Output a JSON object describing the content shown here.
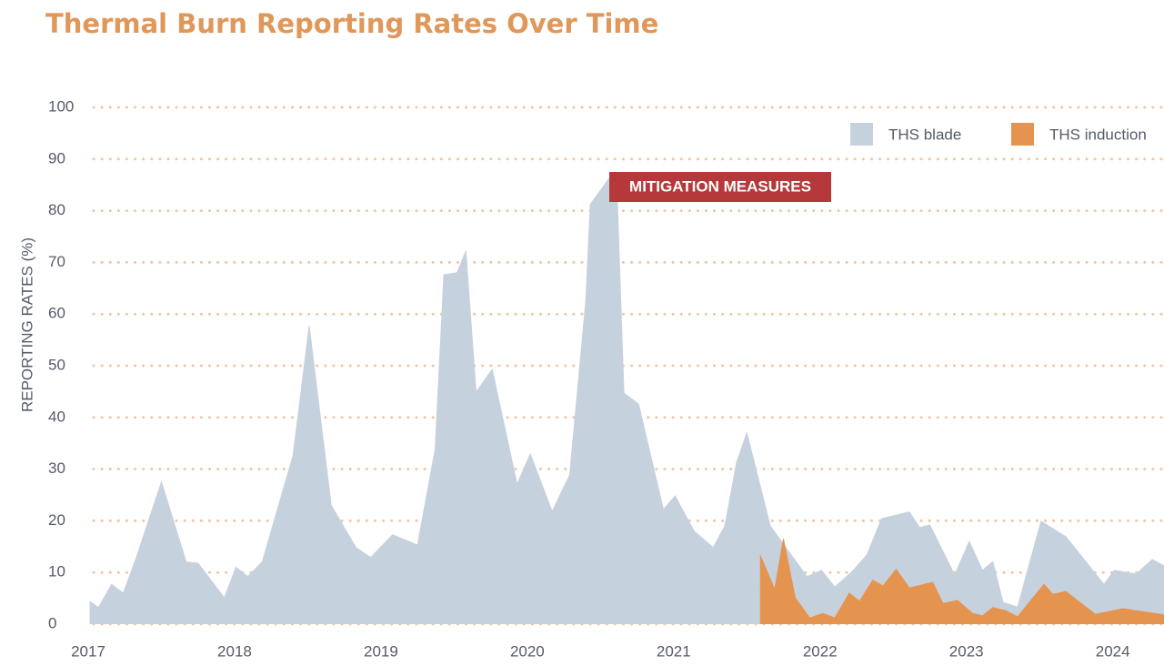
{
  "chart_data": {
    "type": "area",
    "title": "Thermal Burn Reporting Rates Over Time",
    "y_label": "REPORTING RATES (%)",
    "annotation": "MITIGATION MEASURES",
    "xlim": [
      2017,
      2024.35
    ],
    "xticks": [
      2017,
      2018,
      2019,
      2020,
      2021,
      2022,
      2023,
      2024
    ],
    "ylim": [
      0,
      100
    ],
    "yticks": [
      0,
      10,
      20,
      30,
      40,
      50,
      60,
      70,
      80,
      90,
      100
    ],
    "grid": true,
    "legend": "top-right",
    "series": [
      {
        "name": "THS blade",
        "color": "#c6d1de",
        "x": [
          2017.01,
          2017.07,
          2017.16,
          2017.24,
          2017.33,
          2017.5,
          2017.67,
          2017.75,
          2017.93,
          2018.01,
          2018.09,
          2018.19,
          2018.4,
          2018.51,
          2018.66,
          2018.83,
          2018.93,
          2019.08,
          2019.25,
          2019.37,
          2019.43,
          2019.52,
          2019.58,
          2019.65,
          2019.76,
          2019.93,
          2020.02,
          2020.17,
          2020.29,
          2020.4,
          2020.43,
          2020.56,
          2020.61,
          2020.66,
          2020.76,
          2020.93,
          2021.01,
          2021.14,
          2021.27,
          2021.35,
          2021.43,
          2021.5,
          2021.66,
          2021.91,
          2022.01,
          2022.1,
          2022.21,
          2022.32,
          2022.42,
          2022.61,
          2022.68,
          2022.75,
          2022.92,
          2023.02,
          2023.11,
          2023.18,
          2023.25,
          2023.35,
          2023.51,
          2023.68,
          2023.94,
          2024.01,
          2024.16,
          2024.27,
          2024.35
        ],
        "values": [
          4.4,
          3.2,
          7.7,
          6,
          13,
          27.5,
          12,
          11.8,
          5.1,
          11,
          9.2,
          12.1,
          32.7,
          57.7,
          23,
          14.8,
          12.9,
          17.3,
          15.3,
          33.8,
          67.6,
          68,
          72.2,
          44.9,
          49.3,
          27.1,
          32.9,
          21.8,
          28.9,
          62.7,
          81.2,
          86.3,
          86.3,
          44.7,
          42.6,
          22.2,
          24.8,
          18,
          14.8,
          19,
          31.3,
          37,
          19,
          9.2,
          10.4,
          7.2,
          9.9,
          13.4,
          20.4,
          21.7,
          18.7,
          19.2,
          9.5,
          16,
          10.4,
          12.1,
          4.2,
          3.3,
          19.9,
          16.9,
          7.7,
          10.4,
          9.7,
          12.5,
          11.3
        ]
      },
      {
        "name": "THS induction",
        "color": "#e5944f",
        "x": [
          2021.59,
          2021.69,
          2021.75,
          2021.83,
          2021.93,
          2022.02,
          2022.1,
          2022.2,
          2022.27,
          2022.36,
          2022.43,
          2022.52,
          2022.61,
          2022.77,
          2022.84,
          2022.94,
          2023.04,
          2023.11,
          2023.18,
          2023.27,
          2023.35,
          2023.53,
          2023.59,
          2023.68,
          2023.88,
          2024.07,
          2024.35
        ],
        "values": [
          13.4,
          6.7,
          16.5,
          5.1,
          1.2,
          2.1,
          1.2,
          6,
          4.4,
          8.5,
          7.4,
          10.6,
          7,
          8.1,
          4,
          4.6,
          2.1,
          1.6,
          3.2,
          2.6,
          1.4,
          7.7,
          5.8,
          6.3,
          1.9,
          3,
          1.8
        ]
      }
    ]
  }
}
